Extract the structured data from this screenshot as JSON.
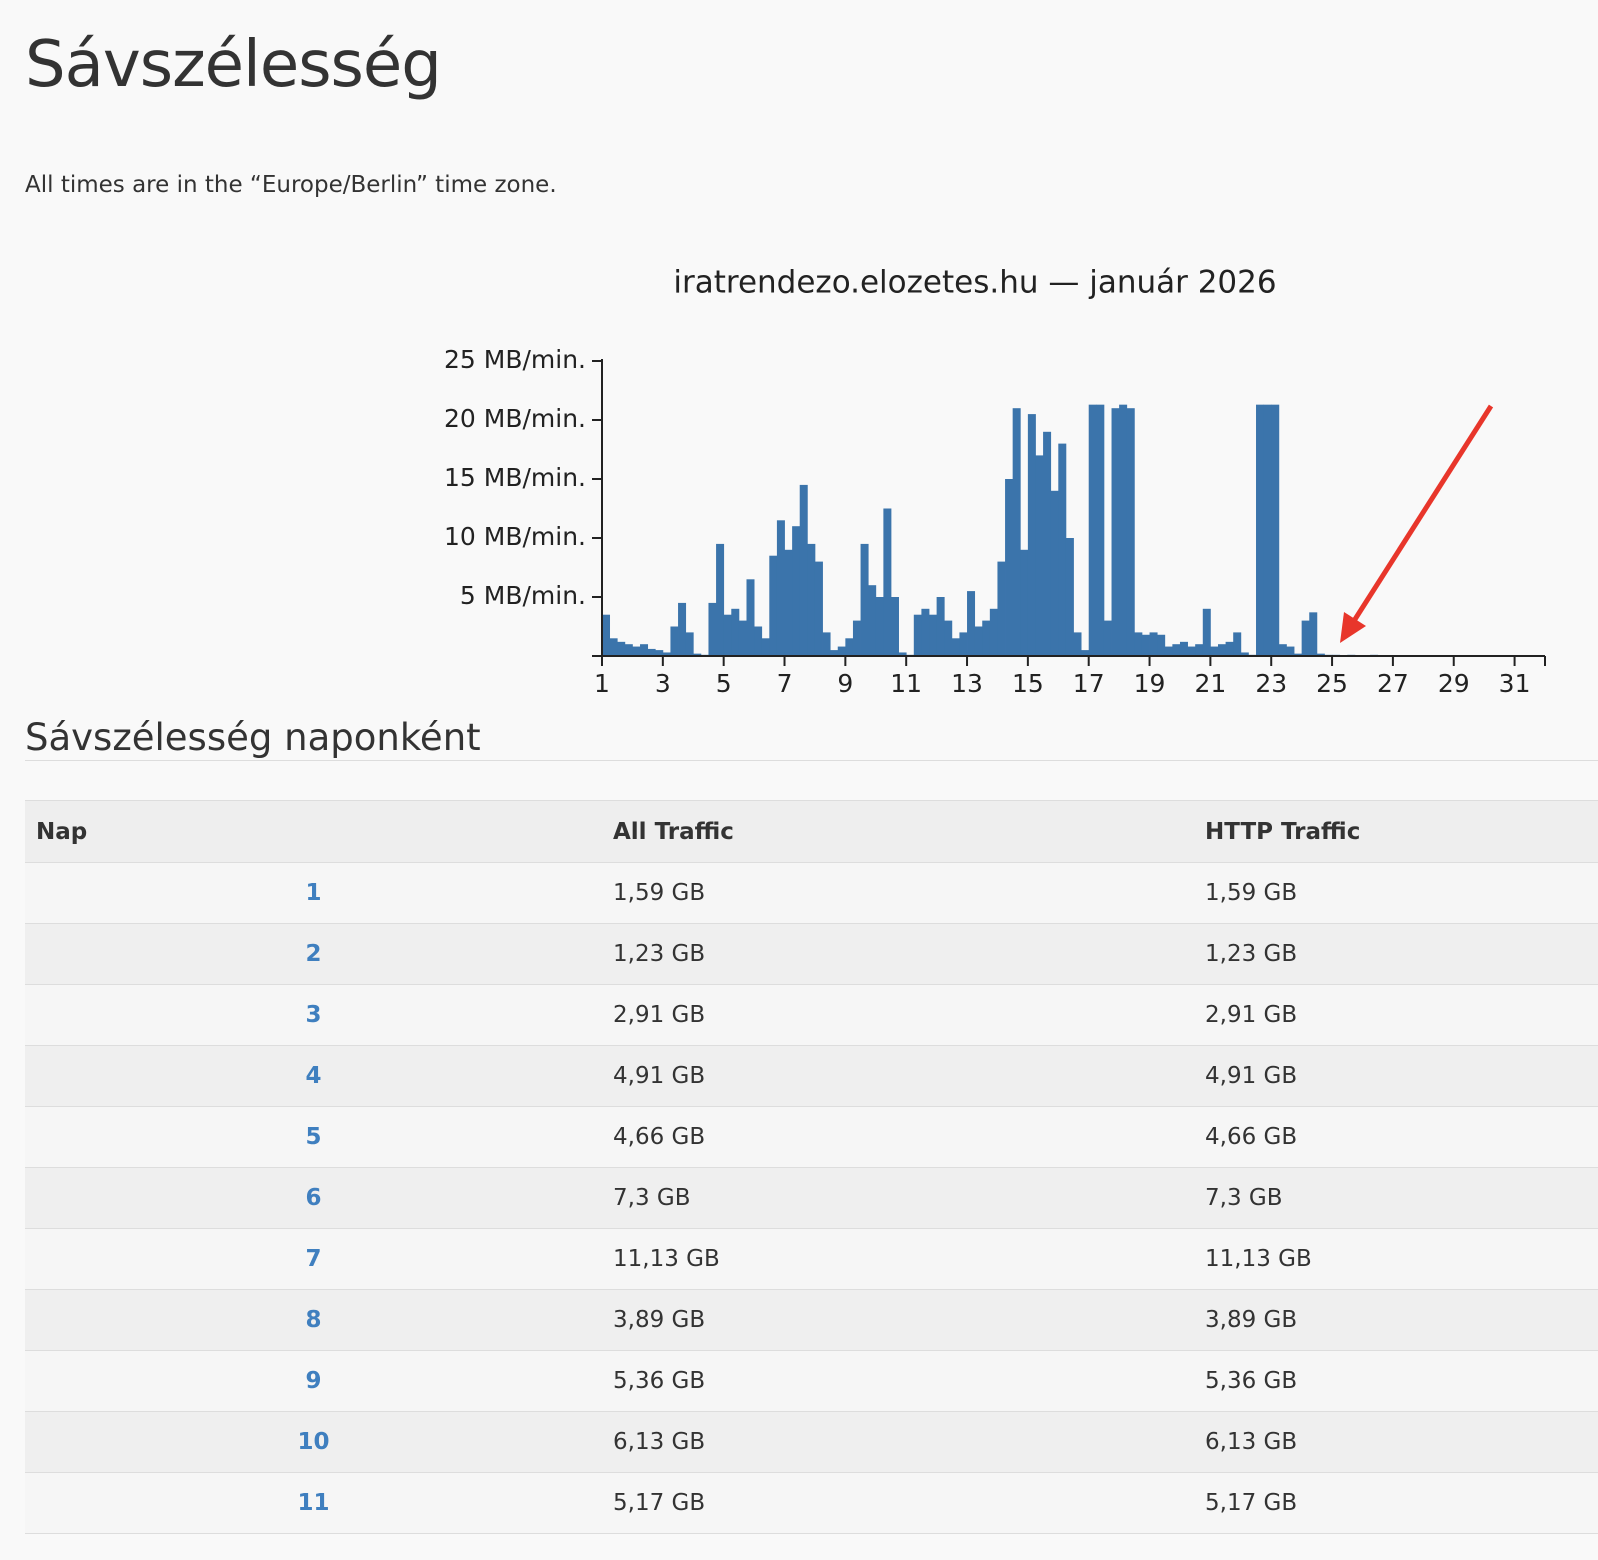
{
  "header": {
    "title": "Sávszélesség",
    "note": "All times are in the “Europe/Berlin” time zone."
  },
  "chart_data": {
    "type": "area",
    "title": "iratrendezo.elozetes.hu — január 2026",
    "color": "#3b74ab",
    "x": [
      1,
      1.25,
      1.5,
      1.75,
      2,
      2.25,
      2.5,
      2.75,
      3,
      3.25,
      3.5,
      3.75,
      4,
      4.25,
      4.5,
      4.75,
      5,
      5.25,
      5.5,
      5.75,
      6,
      6.25,
      6.5,
      6.75,
      7,
      7.25,
      7.5,
      7.75,
      8,
      8.25,
      8.5,
      8.75,
      9,
      9.25,
      9.5,
      9.75,
      10,
      10.25,
      10.5,
      10.75,
      11,
      11.25,
      11.5,
      11.75,
      12,
      12.25,
      12.5,
      12.75,
      13,
      13.25,
      13.5,
      13.75,
      14,
      14.25,
      14.5,
      14.75,
      15,
      15.25,
      15.5,
      15.75,
      16,
      16.25,
      16.5,
      16.75,
      17,
      17.25,
      17.5,
      17.75,
      18,
      18.25,
      18.5,
      18.75,
      19,
      19.25,
      19.5,
      19.75,
      20,
      20.25,
      20.5,
      20.75,
      21,
      21.25,
      21.5,
      21.75,
      22,
      22.25,
      22.5,
      22.75,
      23,
      23.25,
      23.5,
      23.75,
      24,
      24.25,
      24.5,
      24.75,
      25,
      25.25,
      25.5,
      25.75,
      26,
      26.25,
      26.5,
      26.75
    ],
    "values": [
      3.5,
      1.5,
      1.2,
      1.0,
      0.8,
      1.0,
      0.6,
      0.5,
      0.3,
      2.5,
      4.5,
      2.0,
      0.2,
      0.1,
      4.5,
      9.5,
      3.5,
      4.0,
      3.0,
      6.5,
      2.5,
      1.5,
      8.5,
      11.5,
      9.0,
      11.0,
      14.5,
      9.5,
      8.0,
      2.0,
      0.5,
      0.8,
      1.5,
      3.0,
      9.5,
      6.0,
      5.0,
      12.5,
      5.0,
      0.3,
      0.1,
      3.5,
      4.0,
      3.5,
      5.0,
      3.0,
      1.5,
      2.0,
      5.5,
      2.5,
      3.0,
      4.0,
      8.0,
      15.0,
      21.0,
      9.0,
      20.5,
      17.0,
      19.0,
      14.0,
      18.0,
      10.0,
      2.0,
      0.5,
      21.3,
      21.3,
      3.0,
      21.0,
      21.3,
      21.0,
      2.0,
      1.8,
      2.0,
      1.8,
      0.8,
      1.0,
      1.2,
      0.8,
      1.0,
      4.0,
      0.8,
      1.0,
      1.2,
      2.0,
      0.3,
      0.1,
      21.3,
      21.3,
      21.3,
      1.0,
      0.8,
      0.2,
      3.0,
      3.7,
      0.2,
      0.1,
      0.1,
      0.05,
      0.1,
      0.05,
      0.05,
      0.1,
      0.05,
      0
    ],
    "xlim": [
      1,
      32
    ],
    "xticks": [
      1,
      3,
      5,
      7,
      9,
      11,
      13,
      15,
      17,
      19,
      21,
      23,
      25,
      27,
      29,
      31
    ],
    "ylim": [
      0,
      25
    ],
    "yticks": [
      {
        "value": 5,
        "label": "5 MB/min."
      },
      {
        "value": 10,
        "label": "10 MB/min."
      },
      {
        "value": 15,
        "label": "15 MB/min."
      },
      {
        "value": 20,
        "label": "20 MB/min."
      },
      {
        "value": 25,
        "label": "25 MB/min."
      }
    ]
  },
  "section": {
    "title": "Sávszélesség naponként"
  },
  "table": {
    "columns": [
      "Nap",
      "All Traffic",
      "HTTP Traffic"
    ],
    "rows": [
      [
        "1",
        "1,59 GB",
        "1,59 GB"
      ],
      [
        "2",
        "1,23 GB",
        "1,23 GB"
      ],
      [
        "3",
        "2,91 GB",
        "2,91 GB"
      ],
      [
        "4",
        "4,91 GB",
        "4,91 GB"
      ],
      [
        "5",
        "4,66 GB",
        "4,66 GB"
      ],
      [
        "6",
        "7,3 GB",
        "7,3 GB"
      ],
      [
        "7",
        "11,13 GB",
        "11,13 GB"
      ],
      [
        "8",
        "3,89 GB",
        "3,89 GB"
      ],
      [
        "9",
        "5,36 GB",
        "5,36 GB"
      ],
      [
        "10",
        "6,13 GB",
        "6,13 GB"
      ],
      [
        "11",
        "5,17 GB",
        "5,17 GB"
      ]
    ]
  }
}
